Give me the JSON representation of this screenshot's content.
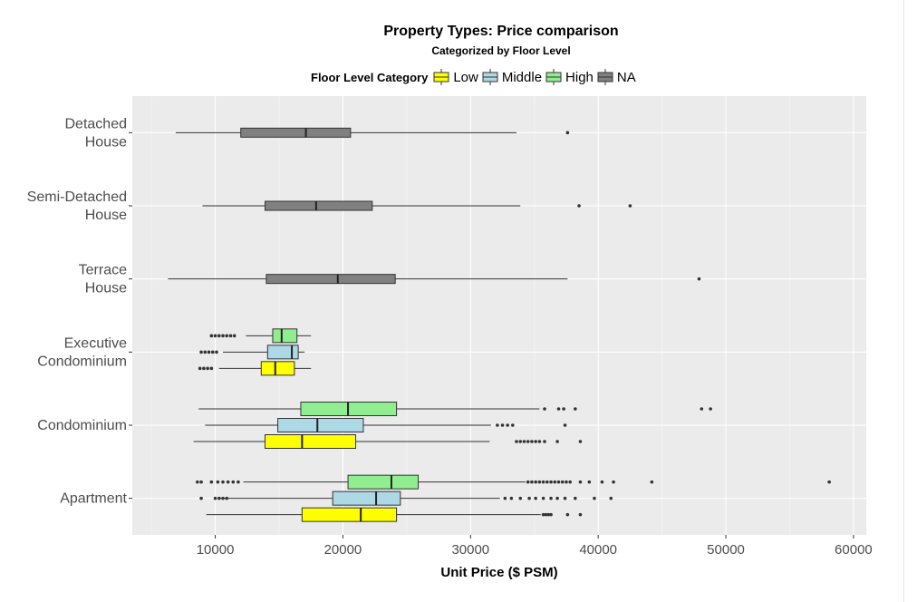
{
  "chart_data": {
    "type": "boxplot",
    "title": "Property Types: Price comparison",
    "subtitle": "Categorized by Floor Level",
    "xlabel": "Unit Price ($ PSM)",
    "ylabel": "",
    "xlim": [
      3500,
      61000
    ],
    "x_ticks": [
      10000,
      20000,
      30000,
      40000,
      50000,
      60000
    ],
    "x_tick_labels": [
      "10000",
      "20000",
      "30000",
      "40000",
      "50000",
      "60000"
    ],
    "legend": {
      "title": "Floor Level Category",
      "position": "top",
      "entries": [
        {
          "name": "Low",
          "color": "#ffff00"
        },
        {
          "name": "Middle",
          "color": "#add8e6"
        },
        {
          "name": "High",
          "color": "#90ee90"
        },
        {
          "name": "NA",
          "color": "#808080"
        }
      ]
    },
    "categories": [
      {
        "label": [
          "Apartment"
        ],
        "boxes": [
          {
            "level": "Low",
            "whisker_low": 9300,
            "q1": 16800,
            "median": 21400,
            "q3": 24200,
            "whisker_high": 35500,
            "outliers": [
              35700,
              35900,
              36100,
              36300,
              37600,
              38600
            ]
          },
          {
            "level": "Middle",
            "whisker_low": 10200,
            "q1": 19200,
            "median": 22600,
            "q3": 24500,
            "whisker_high": 32300,
            "outliers": [
              8900,
              10000,
              10300,
              10600,
              10900,
              32700,
              33200,
              33900,
              34600,
              35100,
              35700,
              36300,
              36800,
              37400,
              38200,
              39700,
              41000
            ]
          },
          {
            "level": "High",
            "whisker_low": 12200,
            "q1": 20400,
            "median": 23800,
            "q3": 25900,
            "whisker_high": 34300,
            "outliers": [
              8600,
              8900,
              9700,
              10200,
              10600,
              11000,
              11400,
              11800,
              34500,
              34800,
              35100,
              35400,
              35700,
              36000,
              36300,
              36600,
              36900,
              37200,
              37500,
              37800,
              38600,
              39300,
              40300,
              41200,
              44200,
              58100
            ]
          }
        ]
      },
      {
        "label": [
          "Condominium"
        ],
        "boxes": [
          {
            "level": "Low",
            "whisker_low": 8300,
            "q1": 13900,
            "median": 16800,
            "q3": 21000,
            "whisker_high": 31500,
            "outliers": [
              33600,
              33900,
              34200,
              34500,
              34800,
              35100,
              35400,
              35800,
              36800,
              38600
            ]
          },
          {
            "level": "Middle",
            "whisker_low": 9200,
            "q1": 14900,
            "median": 18000,
            "q3": 21600,
            "whisker_high": 31600,
            "outliers": [
              32100,
              32500,
              32900,
              33300,
              37400
            ]
          },
          {
            "level": "High",
            "whisker_low": 8700,
            "q1": 16700,
            "median": 20400,
            "q3": 24200,
            "whisker_high": 35400,
            "outliers": [
              35800,
              36900,
              37300,
              38200,
              48100,
              48800
            ]
          }
        ]
      },
      {
        "label": [
          "Executive",
          "Condominium"
        ],
        "boxes": [
          {
            "level": "Low",
            "whisker_low": 10300,
            "q1": 13600,
            "median": 14700,
            "q3": 16200,
            "whisker_high": 17500,
            "outliers": [
              8800,
              9100,
              9400,
              9700
            ]
          },
          {
            "level": "Middle",
            "whisker_low": 10600,
            "q1": 14100,
            "median": 16000,
            "q3": 16500,
            "whisker_high": 17000,
            "outliers": [
              8900,
              9200,
              9500,
              9800,
              10100
            ]
          },
          {
            "level": "High",
            "whisker_low": 12400,
            "q1": 14500,
            "median": 15200,
            "q3": 16400,
            "whisker_high": 17500,
            "outliers": [
              9700,
              10000,
              10300,
              10600,
              10900,
              11200,
              11500
            ]
          }
        ]
      },
      {
        "label": [
          "Terrace",
          "House"
        ],
        "boxes": [
          {
            "level": "NA",
            "whisker_low": 6300,
            "q1": 14000,
            "median": 19600,
            "q3": 24100,
            "whisker_high": 37600,
            "outliers": [
              47900
            ]
          }
        ]
      },
      {
        "label": [
          "Semi-Detached",
          "House"
        ],
        "boxes": [
          {
            "level": "NA",
            "whisker_low": 9000,
            "q1": 13900,
            "median": 17900,
            "q3": 22300,
            "whisker_high": 33900,
            "outliers": [
              38500,
              42500
            ]
          }
        ]
      },
      {
        "label": [
          "Detached",
          "House"
        ],
        "boxes": [
          {
            "level": "NA",
            "whisker_low": 6900,
            "q1": 12000,
            "median": 17100,
            "q3": 20600,
            "whisker_high": 33600,
            "outliers": [
              37600
            ]
          }
        ]
      }
    ]
  }
}
